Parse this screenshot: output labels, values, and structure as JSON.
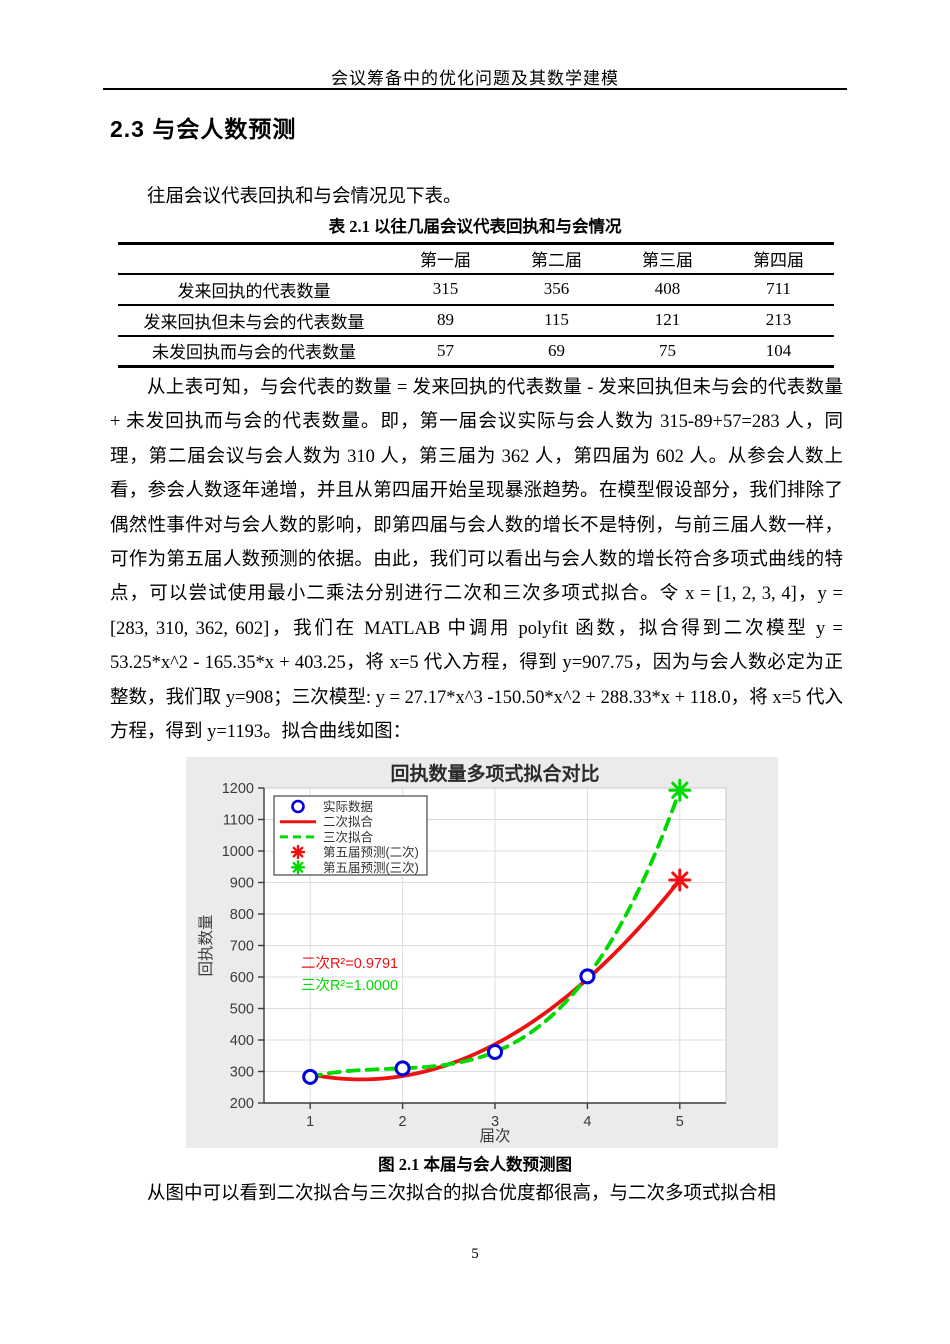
{
  "page": {
    "header_title": "会议筹备中的优化问题及其数学建模",
    "page_number": "5"
  },
  "section": {
    "heading": "2.3 与会人数预测",
    "intro": "往届会议代表回执和与会情况见下表。"
  },
  "table": {
    "caption": "表 2.1 以往几届会议代表回执和与会情况",
    "columns": [
      "",
      "第一届",
      "第二届",
      "第三届",
      "第四届"
    ],
    "rows": [
      {
        "label": "发来回执的代表数量",
        "values": [
          "315",
          "356",
          "408",
          "711"
        ]
      },
      {
        "label": "发来回执但未与会的代表数量",
        "values": [
          "89",
          "115",
          "121",
          "213"
        ]
      },
      {
        "label": "未发回执而与会的代表数量",
        "values": [
          "57",
          "69",
          "75",
          "104"
        ]
      }
    ]
  },
  "body": {
    "paragraph1": "从上表可知，与会代表的数量 = 发来回执的代表数量 - 发来回执但未与会的代表数量 + 未发回执而与会的代表数量。即，第一届会议实际与会人数为 315-89+57=283 人，同理，第二届会议与会人数为 310 人，第三届为 362 人，第四届为 602 人。从参会人数上看，参会人数逐年递增，并且从第四届开始呈现暴涨趋势。在模型假设部分，我们排除了偶然性事件对与会人数的影响，即第四届与会人数的增长不是特例，与前三届人数一样，可作为第五届人数预测的依据。由此，我们可以看出与会人数的增长符合多项式曲线的特点，可以尝试使用最小二乘法分别进行二次和三次多项式拟合。令 x = [1, 2, 3, 4]，y = [283, 310, 362, 602]，我们在 MATLAB 中调用 polyfit 函数，拟合得到二次模型 y = 53.25*x^2 - 165.35*x + 403.25，将 x=5 代入方程，得到 y=907.75，因为与会人数必定为正整数，我们取 y=908；三次模型: y = 27.17*x^3 -150.50*x^2 + 288.33*x + 118.0，将 x=5 代入方程，得到 y=1193。拟合曲线如图：",
    "paragraph2": "从图中可以看到二次拟合与三次拟合的拟合优度都很高，与二次多项式拟合相"
  },
  "figure": {
    "caption": "图 2.1  本届与会人数预测图"
  },
  "chart_data": {
    "type": "line",
    "title": "回执数量多项式拟合对比",
    "xlabel": "届次",
    "ylabel": "回执数量",
    "xlim": [
      0.5,
      5.5
    ],
    "ylim": [
      200,
      1200
    ],
    "xticks": [
      1,
      2,
      3,
      4,
      5
    ],
    "yticks": [
      200,
      300,
      400,
      500,
      600,
      700,
      800,
      900,
      1000,
      1100,
      1200
    ],
    "grid": true,
    "legend_position": "top-left",
    "colors": {
      "actual": "#0000dd",
      "quadratic": "#ee1111",
      "cubic": "#00d900",
      "grid": "#dddddd",
      "box": "#c8c8c8",
      "axis": "#3c3c3c",
      "figure_bg": "#ebebeb",
      "plot_bg": "#ffffff"
    },
    "series": [
      {
        "name": "实际数据",
        "kind": "scatter",
        "marker": "circle",
        "color_key": "actual",
        "x": [
          1,
          2,
          3,
          4
        ],
        "y": [
          283,
          310,
          362,
          602
        ]
      },
      {
        "name": "二次拟合",
        "kind": "curve",
        "style": "solid",
        "color_key": "quadratic",
        "equation": "y = 53.25*x^2 - 165.35*x + 403.25",
        "coeffs": [
          53.25,
          -165.35,
          403.25
        ],
        "x_range": [
          1,
          5
        ]
      },
      {
        "name": "三次拟合",
        "kind": "curve",
        "style": "dashed",
        "color_key": "cubic",
        "equation": "y = 27.17*x^3 - 150.50*x^2 + 288.33*x + 118.0",
        "coeffs": [
          27.17,
          -150.5,
          288.33,
          118.0
        ],
        "x_range": [
          1,
          5
        ]
      },
      {
        "name": "第五届预测(二次)",
        "kind": "scatter",
        "marker": "asterisk",
        "color_key": "quadratic",
        "x": [
          5
        ],
        "y": [
          908
        ]
      },
      {
        "name": "第五届预测(三次)",
        "kind": "scatter",
        "marker": "asterisk",
        "color_key": "cubic",
        "x": [
          5
        ],
        "y": [
          1193
        ]
      }
    ],
    "annotations": [
      {
        "text": "二次R²=0.9791",
        "color_key": "quadratic",
        "x": 0.9,
        "y": 645
      },
      {
        "text": "三次R²=1.0000",
        "color_key": "cubic",
        "x": 0.9,
        "y": 575
      }
    ]
  }
}
